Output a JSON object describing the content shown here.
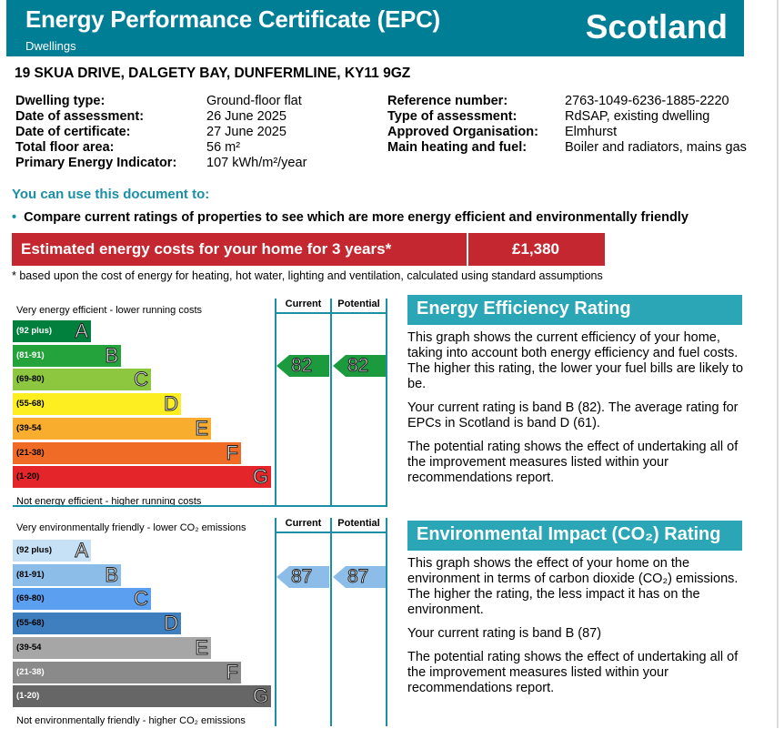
{
  "header": {
    "title": "Energy Performance Certificate (EPC)",
    "subtitle": "Dwellings",
    "region": "Scotland",
    "color": "#007e96"
  },
  "address": "19 SKUA DRIVE, DALGETY BAY, DUNFERMLINE, KY11 9GZ",
  "details_left": [
    {
      "label": "Dwelling type:",
      "value": "Ground-floor flat"
    },
    {
      "label": "Date of assessment:",
      "value": "26 June 2025"
    },
    {
      "label": "Date of certificate:",
      "value": "27 June 2025"
    },
    {
      "label": "Total floor area:",
      "value": "56 m²"
    },
    {
      "label": "Primary Energy Indicator:",
      "value": "107 kWh/m²/year"
    }
  ],
  "details_right": [
    {
      "label": "Reference number:",
      "value": "2763-1049-6236-1885-2220"
    },
    {
      "label": "Type of assessment:",
      "value": "RdSAP, existing dwelling"
    },
    {
      "label": "Approved Organisation:",
      "value": "Elmhurst"
    },
    {
      "label": "Main heating and fuel:",
      "value": "Boiler and radiators, mains gas"
    }
  ],
  "use_heading": "You can use this document to:",
  "bullet": "Compare current ratings of properties to see which are more energy efficient and environmentally friendly",
  "cost": {
    "label": "Estimated energy costs for your home for 3 years*",
    "value": "£1,380",
    "color": "#c4272f"
  },
  "footnote": "* based upon the cost of energy for heating, hot water, lighting and ventilation, calculated using standard assumptions",
  "energy": {
    "top_caption": "Very energy efficient - lower running costs",
    "bottom_caption": "Not energy efficient - higher running costs",
    "col_current": "Current",
    "col_potential": "Potential",
    "current": "82",
    "potential": "82",
    "arrow_color": "#1c9a3e",
    "bands": [
      {
        "range": "(92 plus)",
        "letter": "A",
        "color": "#007f3d",
        "text": "#fff"
      },
      {
        "range": "(81-91)",
        "letter": "B",
        "color": "#24a23b",
        "text": "#fff"
      },
      {
        "range": "(69-80)",
        "letter": "C",
        "color": "#8dc63f",
        "text": "#000"
      },
      {
        "range": "(55-68)",
        "letter": "D",
        "color": "#fcee21",
        "text": "#000"
      },
      {
        "range": "(39-54",
        "letter": "E",
        "color": "#f9ad2e",
        "text": "#000"
      },
      {
        "range": "(21-38)",
        "letter": "F",
        "color": "#f06b26",
        "text": "#000"
      },
      {
        "range": "(1-20)",
        "letter": "G",
        "color": "#e4262b",
        "text": "#000"
      }
    ],
    "title": "Energy Efficiency Rating",
    "paragraphs": [
      "This graph shows the current efficiency of your home, taking into account both energy efficiency and fuel costs. The higher this rating, the lower your fuel bills are likely to be.",
      "Your current rating is band B (82). The average rating for EPCs in Scotland is band D (61).",
      "The potential rating shows the effect of undertaking all of the improvement measures listed within your recommendations report."
    ]
  },
  "environment": {
    "top_caption": "Very environmentally friendly - lower CO₂ emissions",
    "bottom_caption": "Not environmentally friendly - higher CO₂ emissions",
    "col_current": "Current",
    "col_potential": "Potential",
    "current": "87",
    "potential": "87",
    "arrow_color": "#8cbde8",
    "bands": [
      {
        "range": "(92 plus)",
        "letter": "A",
        "color": "#c6e0f5",
        "text": "#000"
      },
      {
        "range": "(81-91)",
        "letter": "B",
        "color": "#8cbde8",
        "text": "#000"
      },
      {
        "range": "(69-80)",
        "letter": "C",
        "color": "#5b9ff0",
        "text": "#000"
      },
      {
        "range": "(55-68)",
        "letter": "D",
        "color": "#3f7fc0",
        "text": "#000"
      },
      {
        "range": "(39-54",
        "letter": "E",
        "color": "#a6a6a6",
        "text": "#000"
      },
      {
        "range": "(21-38)",
        "letter": "F",
        "color": "#8a8a8a",
        "text": "#fff"
      },
      {
        "range": "(1-20)",
        "letter": "G",
        "color": "#666666",
        "text": "#fff"
      }
    ],
    "title": "Environmental Impact (CO₂) Rating",
    "paragraphs": [
      "This graph shows the effect of your home on the environment in terms of carbon dioxide (CO₂) emissions. The higher the rating, the less impact it has on the environment.",
      "Your current rating is band B (87)",
      "The potential rating shows the effect of undertaking all of the improvement measures listed within your recommendations report."
    ]
  }
}
